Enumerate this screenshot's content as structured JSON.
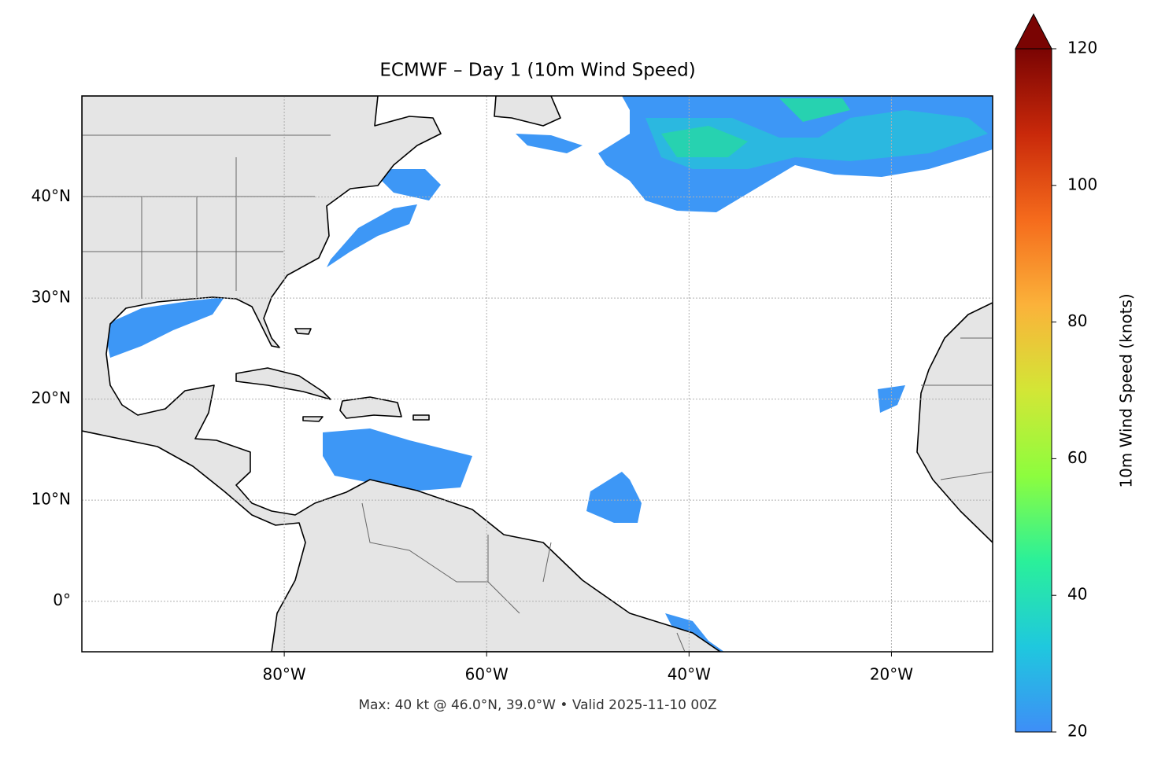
{
  "chart_data": {
    "type": "map",
    "title": "ECMWF – Day 1 (10m Wind Speed)",
    "footnote": "Max: 40 kt @ 46.0°N, 39.0°W • Valid 2025-11-10 00Z",
    "xlim": [
      -100,
      -10
    ],
    "ylim": [
      -5,
      50
    ],
    "xticks": [
      {
        "value": -80,
        "label": "80°W"
      },
      {
        "value": -60,
        "label": "60°W"
      },
      {
        "value": -40,
        "label": "40°W"
      },
      {
        "value": -20,
        "label": "20°W"
      }
    ],
    "yticks": [
      {
        "value": 0,
        "label": "0°"
      },
      {
        "value": 10,
        "label": "10°N"
      },
      {
        "value": 20,
        "label": "20°N"
      },
      {
        "value": 30,
        "label": "30°N"
      },
      {
        "value": 40,
        "label": "40°N"
      }
    ],
    "grid": true,
    "colorbar": {
      "label": "10m Wind Speed (knots)",
      "clim": [
        20,
        120
      ],
      "ticks": [
        20,
        40,
        60,
        80,
        100,
        120
      ],
      "extend": "max",
      "colors": [
        "#3e8ef7",
        "#1fc8de",
        "#2af09a",
        "#8dfd3e",
        "#d3e636",
        "#fbb23a",
        "#f56b1c",
        "#c9290a",
        "#7a0403"
      ]
    }
  }
}
